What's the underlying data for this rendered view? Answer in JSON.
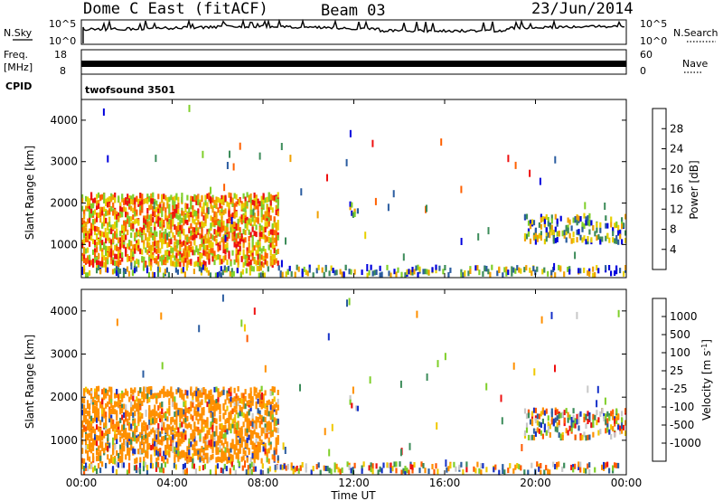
{
  "header": {
    "radar": "Dome C East (fitACF)",
    "beam": "Beam 03",
    "date": "23/Jun/2014"
  },
  "noise_panel": {
    "left_label": "N.Sky",
    "right_label": "N.Search",
    "left_top": "10^5",
    "left_bottom": "10^0",
    "right_top": "10^5",
    "right_bottom": "10^0"
  },
  "freq_panel": {
    "left_label_1": "Freq.",
    "left_label_2": "[MHz]",
    "right_label": "Nave",
    "left_top": "18",
    "left_bottom": "8",
    "right_top": "60",
    "right_bottom": "0"
  },
  "cpid_panel": {
    "label": "CPID",
    "program": "twofsound 3501"
  },
  "colors": {
    "power_scale": [
      "#0000dd",
      "#2a5ca0",
      "#3c8c5a",
      "#7fcf2a",
      "#e8d000",
      "#f0a000",
      "#ff6000",
      "#ee1010"
    ],
    "velocity_scale": [
      "#ee1010",
      "#ff5a00",
      "#ff9000",
      "#f0c800",
      "#c8c8c8",
      "#7fcf2a",
      "#3c8c5a",
      "#2a5ca0",
      "#1530c8"
    ]
  },
  "chart_data": [
    {
      "type": "heatmap",
      "name": "power",
      "ylabel": "Slant Range [km]",
      "colorbar_label": "Power [dB]",
      "colorbar_ticks": [
        "4",
        "8",
        "12",
        "16",
        "20",
        "24",
        "28"
      ],
      "ylim": [
        200,
        4500
      ],
      "yticks": [
        "1000",
        "2000",
        "3000",
        "4000"
      ],
      "xticks": [
        "00:00",
        "04:00",
        "08:00",
        "12:00",
        "16:00",
        "20:00",
        "00:00"
      ],
      "xlabel": "Time UT",
      "echo_regions": [
        {
          "t0": 0.0,
          "t1": 8.7,
          "r0": 500,
          "r1": 2200,
          "level": "strong"
        },
        {
          "t0": 0.0,
          "t1": 24.0,
          "r0": 250,
          "r1": 450,
          "level": "weak"
        },
        {
          "t0": 19.5,
          "t1": 24.0,
          "r0": 1050,
          "r1": 1700,
          "level": "medium"
        },
        {
          "t0": 11.8,
          "t1": 12.2,
          "r0": 1700,
          "r1": 2000,
          "level": "weak"
        }
      ]
    },
    {
      "type": "heatmap",
      "name": "velocity",
      "ylabel": "Slant Range [km]",
      "colorbar_label": "Velocity [m s^-1]",
      "colorbar_ticks": [
        "-1000",
        "-500",
        "-100",
        "-25",
        "25",
        "100",
        "500",
        "1000"
      ],
      "ylim": [
        200,
        4500
      ],
      "yticks": [
        "1000",
        "2000",
        "3000",
        "4000"
      ],
      "xticks": [
        "00:00",
        "04:00",
        "08:00",
        "12:00",
        "16:00",
        "20:00",
        "00:00"
      ],
      "xlabel": "Time UT",
      "echo_regions": [
        {
          "t0": 0.0,
          "t1": 8.7,
          "r0": 500,
          "r1": 2200,
          "level": "strong"
        },
        {
          "t0": 0.0,
          "t1": 24.0,
          "r0": 250,
          "r1": 450,
          "level": "weak"
        },
        {
          "t0": 19.5,
          "t1": 24.0,
          "r0": 1050,
          "r1": 1700,
          "level": "medium"
        },
        {
          "t0": 11.8,
          "t1": 12.2,
          "r0": 1700,
          "r1": 2000,
          "level": "weak"
        }
      ]
    }
  ]
}
